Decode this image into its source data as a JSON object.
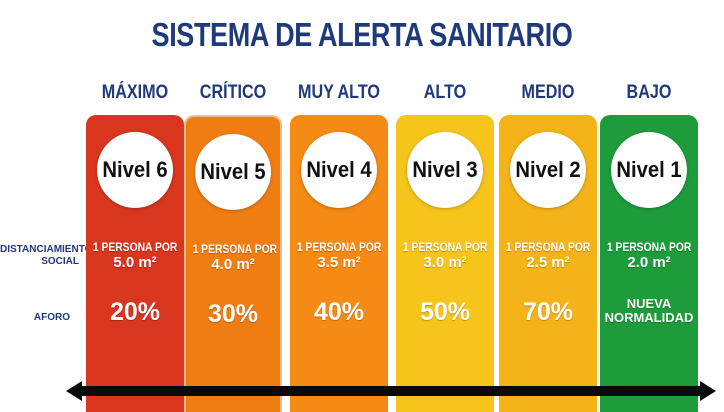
{
  "title": "SISTEMA DE ALERTA SANITARIO",
  "row_labels": {
    "distanciamiento_line1": "DISTANCIAMIENTO",
    "distanciamiento_line2": "SOCIAL",
    "aforo": "AFORO"
  },
  "levels": [
    {
      "header": "MÁXIMO",
      "nivel": "Nivel 6",
      "dist_line1": "1 PERSONA POR",
      "dist_line2": "5.0 m²",
      "aforo": "20%",
      "aforo_line2": "",
      "color": "#d8361f"
    },
    {
      "header": "CRÍTICO",
      "nivel": "Nivel 5",
      "dist_line1": "1 PERSONA POR",
      "dist_line2": "4.0 m²",
      "aforo": "30%",
      "aforo_line2": "",
      "color": "#f07d12"
    },
    {
      "header": "MUY ALTO",
      "nivel": "Nivel 4",
      "dist_line1": "1 PERSONA POR",
      "dist_line2": "3.5 m²",
      "aforo": "40%",
      "aforo_line2": "",
      "color": "#f58a14"
    },
    {
      "header": "ALTO",
      "nivel": "Nivel 3",
      "dist_line1": "1 PERSONA POR",
      "dist_line2": "3.0 m²",
      "aforo": "50%",
      "aforo_line2": "",
      "color": "#f6c41b"
    },
    {
      "header": "MEDIO",
      "nivel": "Nivel 2",
      "dist_line1": "1 PERSONA POR",
      "dist_line2": "2.5 m²",
      "aforo": "70%",
      "aforo_line2": "",
      "color": "#f5b31a"
    },
    {
      "header": "BAJO",
      "nivel": "Nivel 1",
      "dist_line1": "1 PERSONA POR",
      "dist_line2": "2.0 m²",
      "aforo": "NUEVA",
      "aforo_line2": "NORMALIDAD",
      "color": "#1e9c3c"
    }
  ]
}
